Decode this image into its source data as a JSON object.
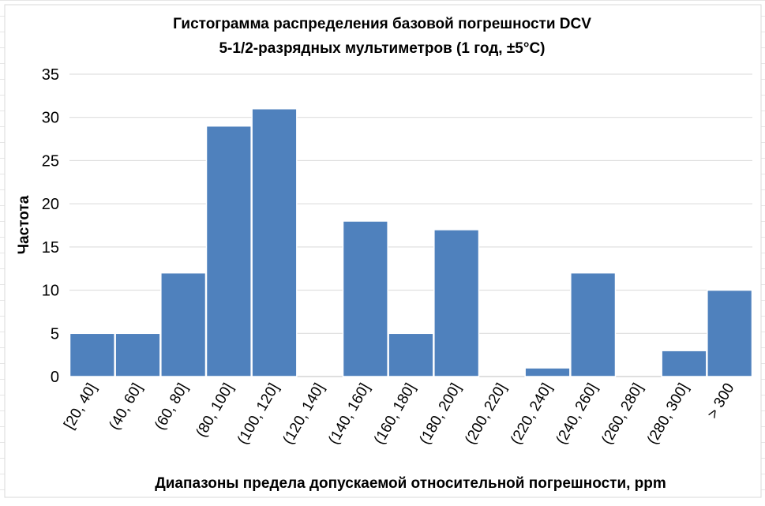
{
  "chart_data": {
    "type": "bar",
    "title_line1": "Гистограмма распределения базовой погрешности DCV",
    "title_line2": "5-1/2-разрядных мультиметров (1 год, ±5°C)",
    "xlabel": "Диапазоны предела допускаемой относительной погрешности, ppm",
    "ylabel": "Частота",
    "categories": [
      "[20, 40]",
      "(40, 60]",
      "(60, 80]",
      "(80, 100]",
      "(100, 120]",
      "(120, 140]",
      "(140, 160]",
      "(160, 180]",
      "(180, 200]",
      "(200, 220]",
      "(220, 240]",
      "(240, 260]",
      "(260, 280]",
      "(280, 300]",
      "> 300"
    ],
    "values": [
      5,
      5,
      12,
      29,
      31,
      0,
      18,
      5,
      17,
      0,
      1,
      12,
      0,
      3,
      10
    ],
    "ylim": [
      0,
      35
    ],
    "yticks": [
      0,
      5,
      10,
      15,
      20,
      25,
      30,
      35
    ],
    "grid": true,
    "legend": "none",
    "bar_color": "#4f81bd"
  }
}
